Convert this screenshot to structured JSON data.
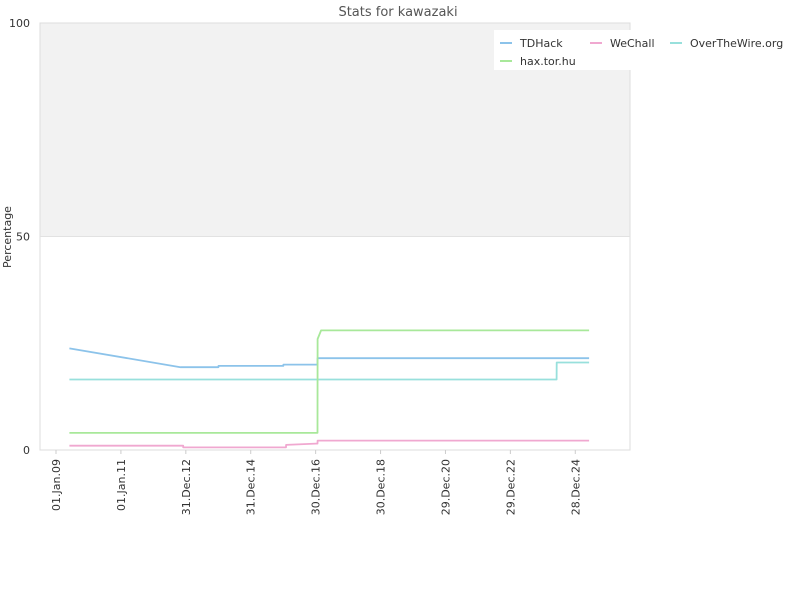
{
  "chart_data": {
    "type": "line",
    "title": "Stats for kawazaki",
    "xlabel": "",
    "ylabel": "Percentage",
    "ylim": [
      0,
      100
    ],
    "yticks": [
      0,
      50,
      100
    ],
    "x_range": [
      "2009-01-01",
      "2025-12-31"
    ],
    "xticks": [
      {
        "date": "2009-01-01",
        "label": "01.Jan.09"
      },
      {
        "date": "2011-01-01",
        "label": "01.Jan.11"
      },
      {
        "date": "2012-12-31",
        "label": "31.Dec.12"
      },
      {
        "date": "2014-12-31",
        "label": "31.Dec.14"
      },
      {
        "date": "2016-12-30",
        "label": "30.Dec.16"
      },
      {
        "date": "2018-12-30",
        "label": "30.Dec.18"
      },
      {
        "date": "2020-12-29",
        "label": "29.Dec.20"
      },
      {
        "date": "2022-12-29",
        "label": "29.Dec.22"
      },
      {
        "date": "2024-12-28",
        "label": "28.Dec.24"
      }
    ],
    "shaded_band": [
      50,
      100
    ],
    "legend_position": "top-right",
    "series": [
      {
        "name": "TDHack",
        "color": "#8cc3ea",
        "step": false,
        "points": [
          [
            "2009-06-01",
            23.8
          ],
          [
            "2012-11-01",
            19.4
          ],
          [
            "2014-01-01",
            19.4
          ],
          [
            "2014-01-02",
            19.7
          ],
          [
            "2016-01-01",
            19.7
          ],
          [
            "2016-01-02",
            20.0
          ],
          [
            "2017-01-20",
            20.0
          ],
          [
            "2017-01-21",
            21.5
          ],
          [
            "2025-06-01",
            21.5
          ]
        ]
      },
      {
        "name": "WeChall",
        "color": "#f0a8d0",
        "step": false,
        "points": [
          [
            "2009-06-01",
            1.0
          ],
          [
            "2012-12-01",
            1.0
          ],
          [
            "2012-12-02",
            0.6
          ],
          [
            "2016-02-01",
            0.6
          ],
          [
            "2016-02-02",
            1.2
          ],
          [
            "2017-01-01",
            1.5
          ],
          [
            "2017-01-20",
            1.5
          ],
          [
            "2017-01-21",
            2.2
          ],
          [
            "2025-06-01",
            2.2
          ]
        ]
      },
      {
        "name": "OverTheWire.org",
        "color": "#98e0dc",
        "step": false,
        "points": [
          [
            "2009-06-01",
            16.5
          ],
          [
            "2024-06-01",
            16.5
          ],
          [
            "2024-06-02",
            20.5
          ],
          [
            "2025-06-01",
            20.5
          ]
        ]
      },
      {
        "name": "hax.tor.hu",
        "color": "#a8e89a",
        "step": false,
        "points": [
          [
            "2009-06-01",
            4.0
          ],
          [
            "2017-01-20",
            4.0
          ],
          [
            "2017-01-21",
            26.0
          ],
          [
            "2017-03-01",
            28.0
          ],
          [
            "2025-06-01",
            28.0
          ]
        ]
      }
    ]
  }
}
